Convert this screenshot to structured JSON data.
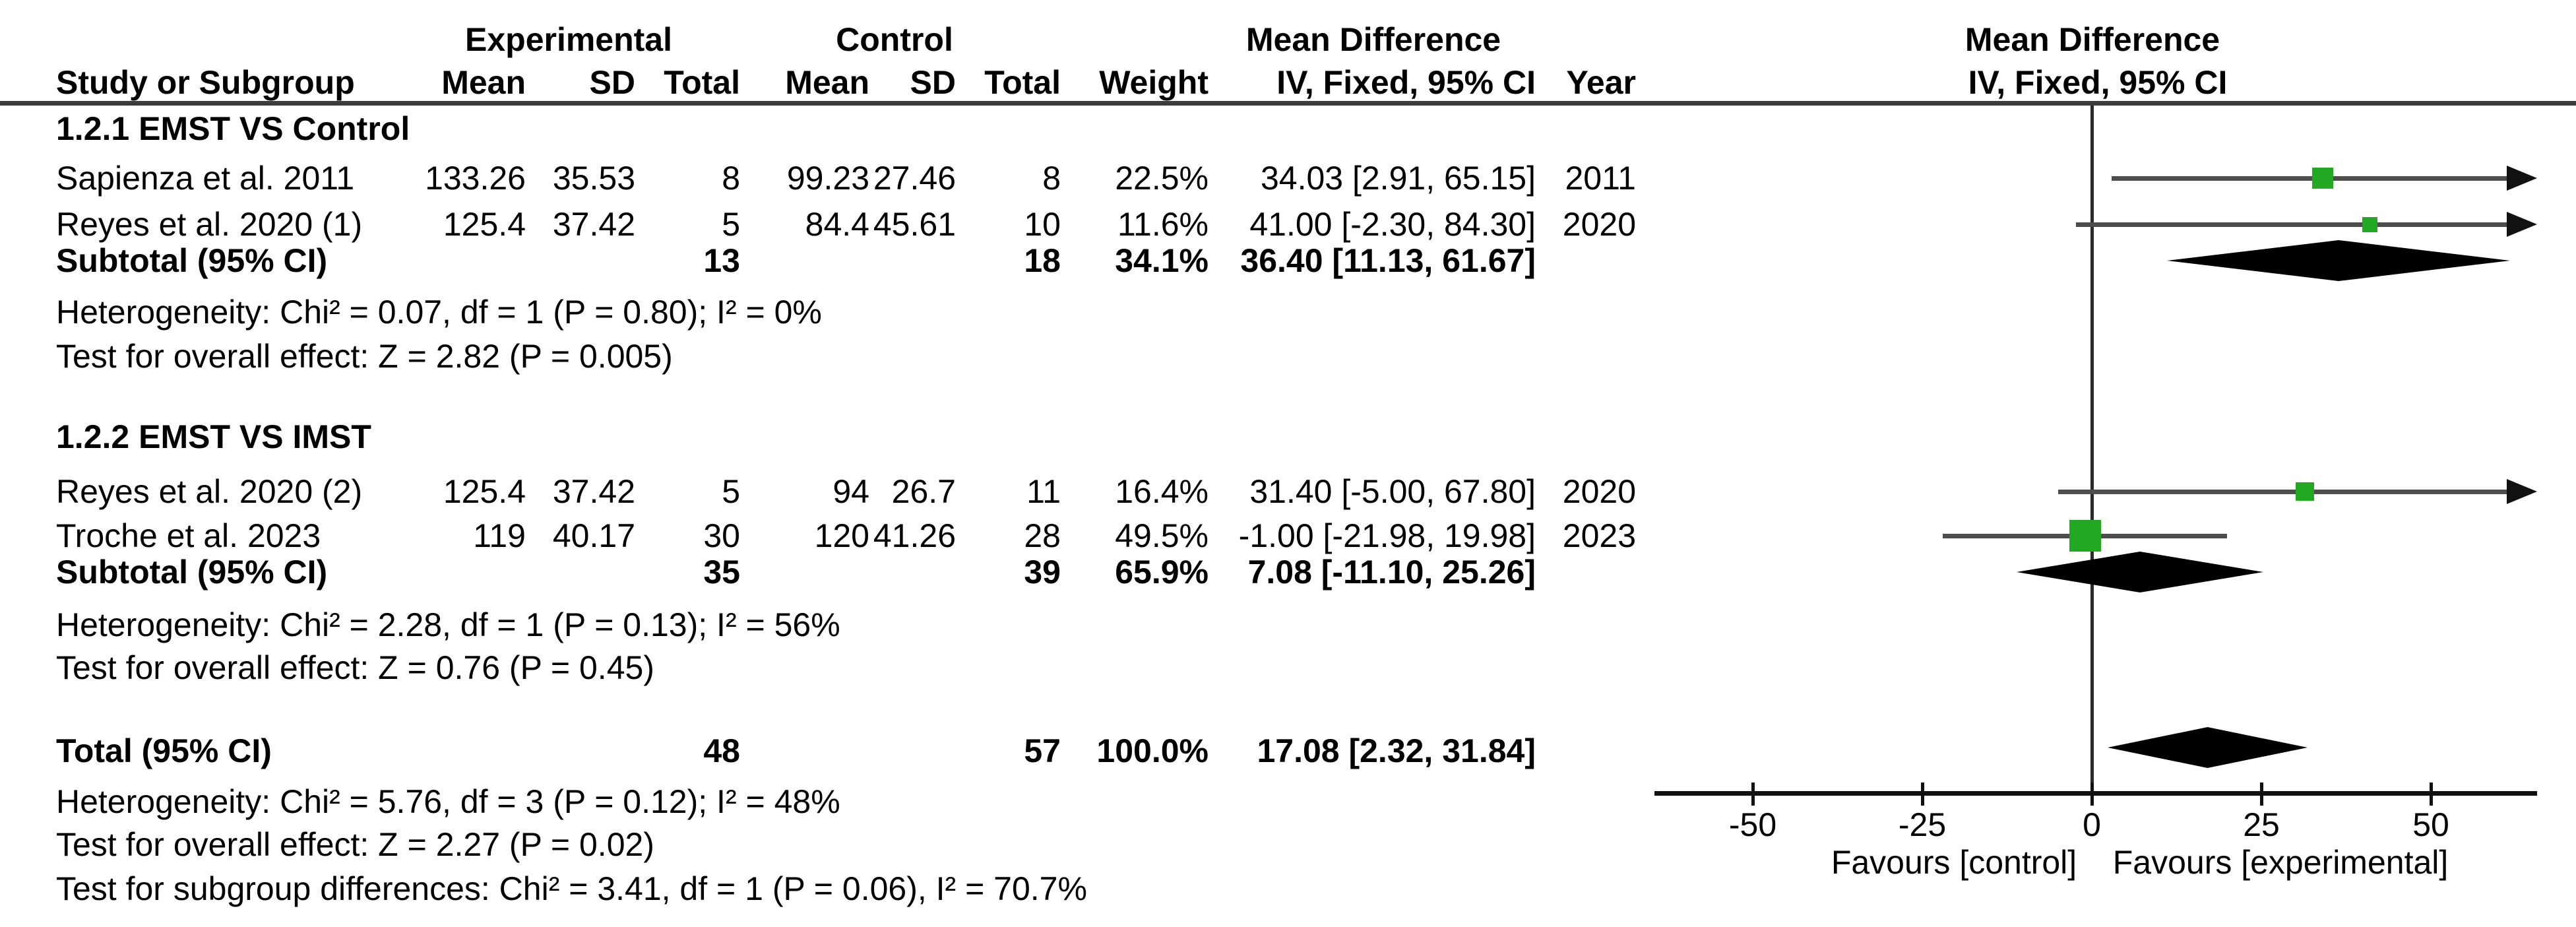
{
  "header": {
    "group1": "Experimental",
    "group2": "Control",
    "md_col": "Mean Difference",
    "md_plot": "Mean Difference",
    "sub": {
      "study": "Study or Subgroup",
      "mean": "Mean",
      "sd": "SD",
      "total": "Total",
      "mean2": "Mean",
      "sd2": "SD",
      "total2": "Total",
      "weight": "Weight",
      "ci": "IV, Fixed, 95% CI",
      "year": "Year",
      "ci_plot": "IV, Fixed, 95% CI"
    }
  },
  "groups": [
    {
      "title": "1.2.1 EMST VS Control",
      "studies": [
        {
          "study": "Sapienza et al. 2011",
          "mean_e": "133.26",
          "sd_e": "35.53",
          "n_e": "8",
          "mean_c": "99.23",
          "sd_c": "27.46",
          "n_c": "8",
          "weight": "22.5%",
          "ci": "34.03 [2.91, 65.15]",
          "year": "2011",
          "est": 34.03,
          "lo": 2.91,
          "hi": 65.15,
          "w": 22.5
        },
        {
          "study": "Reyes et al. 2020 (1)",
          "mean_e": "125.4",
          "sd_e": "37.42",
          "n_e": "5",
          "mean_c": "84.4",
          "sd_c": "45.61",
          "n_c": "10",
          "weight": "11.6%",
          "ci": "41.00 [-2.30, 84.30]",
          "year": "2020",
          "est": 41.0,
          "lo": -2.3,
          "hi": 84.3,
          "w": 11.6
        }
      ],
      "subtotal": {
        "label": "Subtotal (95% CI)",
        "n_e": "13",
        "n_c": "18",
        "weight": "34.1%",
        "ci": "36.40 [11.13, 61.67]",
        "est": 36.4,
        "lo": 11.13,
        "hi": 61.67
      },
      "het": "Heterogeneity: Chi² = 0.07, df = 1 (P = 0.80); I² = 0%",
      "test": "Test for overall effect: Z = 2.82 (P = 0.005)"
    },
    {
      "title": "1.2.2 EMST VS IMST",
      "studies": [
        {
          "study": "Reyes et al. 2020 (2)",
          "mean_e": "125.4",
          "sd_e": "37.42",
          "n_e": "5",
          "mean_c": "94",
          "sd_c": "26.7",
          "n_c": "11",
          "weight": "16.4%",
          "ci": "31.40 [-5.00, 67.80]",
          "year": "2020",
          "est": 31.4,
          "lo": -5.0,
          "hi": 67.8,
          "w": 16.4
        },
        {
          "study": "Troche et al. 2023",
          "mean_e": "119",
          "sd_e": "40.17",
          "n_e": "30",
          "mean_c": "120",
          "sd_c": "41.26",
          "n_c": "28",
          "weight": "49.5%",
          "ci": "-1.00 [-21.98, 19.98]",
          "year": "2023",
          "est": -1.0,
          "lo": -21.98,
          "hi": 19.98,
          "w": 49.5
        }
      ],
      "subtotal": {
        "label": "Subtotal (95% CI)",
        "n_e": "35",
        "n_c": "39",
        "weight": "65.9%",
        "ci": "7.08 [-11.10, 25.26]",
        "est": 7.08,
        "lo": -11.1,
        "hi": 25.26
      },
      "het": "Heterogeneity: Chi² = 2.28, df = 1 (P = 0.13); I² = 56%",
      "test": "Test for overall effect: Z = 0.76 (P = 0.45)"
    }
  ],
  "total": {
    "label": "Total (95% CI)",
    "n_e": "48",
    "n_c": "57",
    "weight": "100.0%",
    "ci": "17.08 [2.32, 31.84]",
    "est": 17.08,
    "lo": 2.32,
    "hi": 31.84
  },
  "total_het": "Heterogeneity: Chi² = 5.76, df = 3 (P = 0.12); I² = 48%",
  "total_test": "Test for overall effect: Z = 2.27 (P = 0.02)",
  "subgroup_test": "Test for subgroup differences: Chi² = 3.41, df = 1 (P = 0.06), I² = 70.7%",
  "axis": {
    "ticks": [
      -50,
      -25,
      0,
      25,
      50
    ],
    "fav_left": "Favours [control]",
    "fav_right": "Favours [experimental]"
  },
  "colors": {
    "marker_green": "#22a822",
    "diamond": "#000000",
    "ci_line": "#4d4d4d",
    "axis": "#111111",
    "rule": "#3c3c3c"
  },
  "chart_data": {
    "type": "forest",
    "effect_measure": "Mean Difference, IV, Fixed, 95% CI",
    "xlim": [
      -64.5,
      64.9
    ],
    "x_ticks": [
      -50,
      -25,
      0,
      25,
      50
    ],
    "x_label_left": "Favours [control]",
    "x_label_right": "Favours [experimental]",
    "subgroups": [
      {
        "name": "1.2.1 EMST VS Control",
        "studies": [
          {
            "study": "Sapienza et al. 2011",
            "estimate": 34.03,
            "ci_low": 2.91,
            "ci_high": 65.15,
            "weight_pct": 22.5,
            "year": 2011,
            "exp": {
              "mean": 133.26,
              "sd": 35.53,
              "total": 8
            },
            "ctrl": {
              "mean": 99.23,
              "sd": 27.46,
              "total": 8
            }
          },
          {
            "study": "Reyes et al. 2020 (1)",
            "estimate": 41.0,
            "ci_low": -2.3,
            "ci_high": 84.3,
            "weight_pct": 11.6,
            "year": 2020,
            "exp": {
              "mean": 125.4,
              "sd": 37.42,
              "total": 5
            },
            "ctrl": {
              "mean": 84.4,
              "sd": 45.61,
              "total": 10
            }
          }
        ],
        "subtotal": {
          "estimate": 36.4,
          "ci_low": 11.13,
          "ci_high": 61.67,
          "weight_pct": 34.1,
          "exp_total": 13,
          "ctrl_total": 18
        },
        "heterogeneity": {
          "chi2": 0.07,
          "df": 1,
          "p": 0.8,
          "i2_pct": 0
        },
        "overall_effect": {
          "z": 2.82,
          "p": 0.005
        }
      },
      {
        "name": "1.2.2 EMST VS IMST",
        "studies": [
          {
            "study": "Reyes et al. 2020 (2)",
            "estimate": 31.4,
            "ci_low": -5.0,
            "ci_high": 67.8,
            "weight_pct": 16.4,
            "year": 2020,
            "exp": {
              "mean": 125.4,
              "sd": 37.42,
              "total": 5
            },
            "ctrl": {
              "mean": 94,
              "sd": 26.7,
              "total": 11
            }
          },
          {
            "study": "Troche et al. 2023",
            "estimate": -1.0,
            "ci_low": -21.98,
            "ci_high": 19.98,
            "weight_pct": 49.5,
            "year": 2023,
            "exp": {
              "mean": 119,
              "sd": 40.17,
              "total": 30
            },
            "ctrl": {
              "mean": 120,
              "sd": 41.26,
              "total": 28
            }
          }
        ],
        "subtotal": {
          "estimate": 7.08,
          "ci_low": -11.1,
          "ci_high": 25.26,
          "weight_pct": 65.9,
          "exp_total": 35,
          "ctrl_total": 39
        },
        "heterogeneity": {
          "chi2": 2.28,
          "df": 1,
          "p": 0.13,
          "i2_pct": 56
        },
        "overall_effect": {
          "z": 0.76,
          "p": 0.45
        }
      }
    ],
    "total": {
      "estimate": 17.08,
      "ci_low": 2.32,
      "ci_high": 31.84,
      "weight_pct": 100.0,
      "exp_total": 48,
      "ctrl_total": 57
    },
    "total_heterogeneity": {
      "chi2": 5.76,
      "df": 3,
      "p": 0.12,
      "i2_pct": 48
    },
    "total_overall_effect": {
      "z": 2.27,
      "p": 0.02
    },
    "subgroup_differences": {
      "chi2": 3.41,
      "df": 1,
      "p": 0.06,
      "i2_pct": 70.7
    }
  }
}
